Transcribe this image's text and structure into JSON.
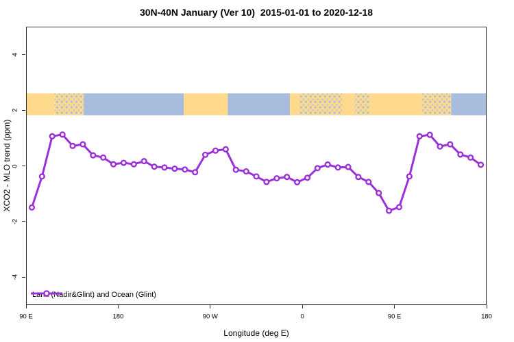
{
  "title": "30N-40N January (Ver 10)  2015-01-01 to 2020-12-18",
  "legend": {
    "label": "Land (Nadir&Glint) and Ocean (Glint)"
  },
  "colors": {
    "line": "#9B2FD9",
    "marker_fill": "#FFFFFF",
    "land": "#FFD98C",
    "ocean": "#A8BDDE",
    "axis": "#2E2E2E",
    "text": "#000000",
    "background": "#FFFFFF"
  },
  "chart_data": {
    "type": "line",
    "title": "30N-40N January (Ver 10)  2015-01-01 to 2020-12-18",
    "xlabel": "Longitude (deg E)",
    "ylabel": "XCO2 - MLO trend (ppm)",
    "xlim": [
      90,
      540
    ],
    "ylim": [
      -5,
      5
    ],
    "grid": false,
    "legend_position": "bottom-left-inside",
    "x_ticks": [
      {
        "v": 90,
        "label": "90 E"
      },
      {
        "v": 180,
        "label": "180"
      },
      {
        "v": 270,
        "label": "90 W"
      },
      {
        "v": 360,
        "label": "0"
      },
      {
        "v": 450,
        "label": "90 E"
      },
      {
        "v": 540,
        "label": "180"
      }
    ],
    "y_ticks": [
      {
        "v": -4,
        "label": "-4"
      },
      {
        "v": -2,
        "label": "-2"
      },
      {
        "v": 0,
        "label": "0"
      },
      {
        "v": 2,
        "label": "2"
      },
      {
        "v": 4,
        "label": "4"
      }
    ],
    "x": [
      95,
      105,
      115,
      125,
      135,
      145,
      155,
      165,
      175,
      185,
      195,
      205,
      215,
      225,
      235,
      245,
      255,
      265,
      275,
      285,
      295,
      305,
      315,
      325,
      335,
      345,
      355,
      365,
      375,
      385,
      395,
      405,
      415,
      425,
      435,
      445,
      455,
      465,
      475,
      485,
      495,
      505,
      515,
      525,
      535
    ],
    "series": [
      {
        "name": "Land (Nadir&Glint) and Ocean (Glint)",
        "values": [
          -1.5,
          -0.38,
          1.07,
          1.13,
          0.72,
          0.78,
          0.38,
          0.3,
          0.06,
          0.11,
          0.06,
          0.17,
          -0.03,
          -0.06,
          -0.1,
          -0.13,
          -0.23,
          0.4,
          0.55,
          0.6,
          -0.14,
          -0.2,
          -0.38,
          -0.58,
          -0.45,
          -0.4,
          -0.59,
          -0.43,
          -0.08,
          0.05,
          -0.06,
          -0.04,
          -0.4,
          -0.58,
          -0.98,
          -1.62,
          -1.49,
          -0.38,
          1.07,
          1.12,
          0.7,
          0.78,
          0.41,
          0.3,
          0.04
        ]
      }
    ],
    "map_strip": {
      "y_top": 2.62,
      "y_bottom": 1.83,
      "segments": [
        {
          "from": 90,
          "to": 117,
          "type": "land"
        },
        {
          "from": 117,
          "to": 146,
          "type": "mixed"
        },
        {
          "from": 146,
          "to": 244,
          "type": "ocean"
        },
        {
          "from": 244,
          "to": 287,
          "type": "land"
        },
        {
          "from": 287,
          "to": 348,
          "type": "ocean"
        },
        {
          "from": 348,
          "to": 357,
          "type": "land"
        },
        {
          "from": 357,
          "to": 399,
          "type": "mixed"
        },
        {
          "from": 399,
          "to": 411,
          "type": "land"
        },
        {
          "from": 411,
          "to": 426,
          "type": "mixed"
        },
        {
          "from": 426,
          "to": 477,
          "type": "land"
        },
        {
          "from": 477,
          "to": 506,
          "type": "mixed"
        },
        {
          "from": 506,
          "to": 540,
          "type": "ocean"
        }
      ]
    }
  }
}
